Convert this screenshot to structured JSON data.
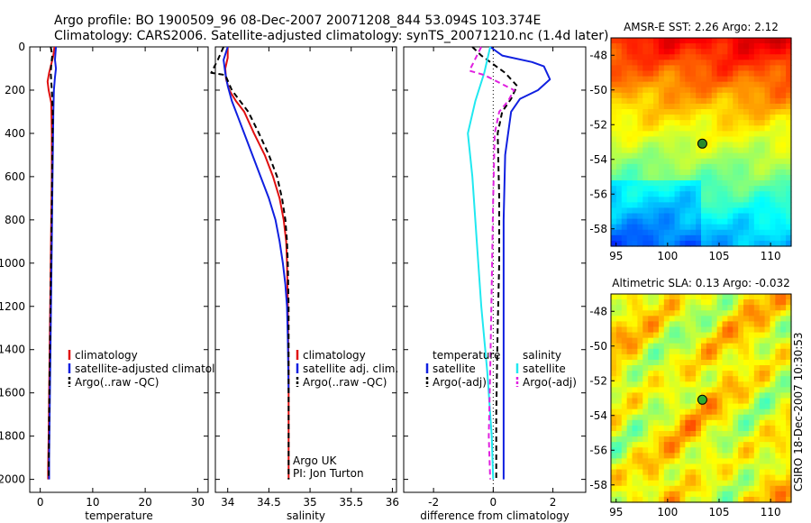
{
  "header": {
    "line1": "Argo profile: BO 1900509_96 08-Dec-2007 20071208_844 53.094S 103.374E",
    "line2": "Climatology: CARS2006. Satellite-adjusted climatology: synTS_20071210.nc (1.4d later)"
  },
  "side_stamp": "CSIRO 18-Dec-2007 10:30:53",
  "colors": {
    "climatology": "#e01010",
    "satellite": "#1020e0",
    "argo": "#000000",
    "satellite_salinity": "#20e8f0",
    "argo_salinity": "#e020e0",
    "marker_map1": "#2a8a2a",
    "marker_map2": "#30b030"
  },
  "chart_data": [
    {
      "type": "line",
      "panel": "temperature",
      "xlabel": "temperature",
      "ylabel": "",
      "xlim": [
        -2,
        32
      ],
      "ylim": [
        2060,
        0
      ],
      "xticks": [
        "0",
        "10",
        "20",
        "30"
      ],
      "yticks": [
        "0",
        "200",
        "400",
        "600",
        "800",
        "1000",
        "1200",
        "1400",
        "1600",
        "1800",
        "2000"
      ],
      "series": [
        {
          "name": "climatology",
          "color": "#e01010",
          "style": "solid",
          "x": [
            2.7,
            2.5,
            2.1,
            1.7,
            1.4,
            1.6,
            2.1,
            2.2,
            2.2,
            2.1,
            2.0,
            1.9,
            1.8,
            1.7,
            1.6,
            1.5,
            1.5
          ],
          "y": [
            0,
            40,
            80,
            120,
            160,
            200,
            260,
            400,
            600,
            800,
            1000,
            1200,
            1400,
            1600,
            1800,
            1950,
            2000
          ]
        },
        {
          "name": "satellite-adjusted climatology",
          "color": "#1020e0",
          "style": "solid",
          "x": [
            3.0,
            2.9,
            2.8,
            3.0,
            2.8,
            2.6,
            2.5,
            2.4,
            2.3,
            2.2,
            2.1,
            2.0,
            1.9,
            1.8,
            1.7,
            1.7
          ],
          "y": [
            0,
            30,
            60,
            100,
            140,
            200,
            300,
            500,
            700,
            900,
            1100,
            1300,
            1500,
            1700,
            1900,
            2000
          ]
        },
        {
          "name": "Argo(..raw -QC)",
          "color": "#000000",
          "style": "dashed",
          "x": [
            2.0,
            2.3,
            2.1,
            2.0,
            2.2,
            2.4,
            2.3,
            2.2,
            2.1,
            2.0,
            1.9,
            1.8,
            1.7,
            1.6
          ],
          "y": [
            0,
            40,
            80,
            120,
            200,
            300,
            500,
            700,
            900,
            1100,
            1300,
            1500,
            1700,
            2000
          ]
        }
      ],
      "legend": {
        "placement": "bottom-right",
        "entries": [
          "climatology",
          "satellite-adjusted climatology",
          "Argo(..raw -QC)"
        ]
      }
    },
    {
      "type": "line",
      "panel": "salinity",
      "xlabel": "salinity",
      "ylabel": "",
      "xlim": [
        33.85,
        36.05
      ],
      "ylim": [
        2060,
        0
      ],
      "xticks": [
        "34",
        "34.5",
        "35",
        "35.5",
        "36"
      ],
      "annotation": [
        "Argo UK",
        "PI: Jon Turton"
      ],
      "series": [
        {
          "name": "climatology",
          "color": "#e01010",
          "style": "solid",
          "x": [
            34.0,
            34.0,
            33.97,
            33.98,
            34.02,
            34.1,
            34.2,
            34.32,
            34.45,
            34.55,
            34.63,
            34.68,
            34.71,
            34.72,
            34.73,
            34.74,
            34.74,
            34.74
          ],
          "y": [
            0,
            50,
            100,
            150,
            200,
            250,
            300,
            400,
            500,
            600,
            700,
            800,
            900,
            1000,
            1200,
            1500,
            1800,
            2000
          ]
        },
        {
          "name": "satellite adj. clim.",
          "color": "#1020e0",
          "style": "solid",
          "x": [
            34.0,
            33.95,
            33.97,
            34.0,
            34.05,
            34.12,
            34.2,
            34.3,
            34.4,
            34.5,
            34.58,
            34.63,
            34.67,
            34.7,
            34.72,
            34.73,
            34.74
          ],
          "y": [
            0,
            60,
            120,
            180,
            250,
            320,
            400,
            500,
            600,
            700,
            800,
            900,
            1000,
            1100,
            1200,
            1350,
            1600
          ]
        },
        {
          "name": "Argo(..raw -QC)",
          "color": "#000000",
          "style": "dashed",
          "x": [
            33.95,
            33.88,
            33.8,
            33.97,
            34.05,
            34.15,
            34.25,
            34.38,
            34.5,
            34.6,
            34.66,
            34.7,
            34.72,
            34.73,
            34.74,
            34.74,
            34.74
          ],
          "y": [
            0,
            60,
            120,
            130,
            200,
            250,
            300,
            400,
            500,
            600,
            700,
            800,
            900,
            1000,
            1200,
            1500,
            2000
          ]
        }
      ],
      "legend": {
        "placement": "bottom-right",
        "entries": [
          "climatology",
          "satellite adj. clim.",
          "Argo(..raw -QC)"
        ]
      }
    },
    {
      "type": "line",
      "panel": "difference",
      "xlabel": "difference from climatology",
      "ylabel": "",
      "xlim": [
        -3,
        3.1
      ],
      "ylim": [
        2060,
        0
      ],
      "xticks": [
        "-2",
        "0",
        "2"
      ],
      "series": [
        {
          "name": "temperature satellite",
          "color": "#1020e0",
          "style": "solid",
          "x": [
            -0.1,
            0.3,
            1.3,
            1.7,
            1.9,
            1.5,
            0.9,
            0.6,
            0.4,
            0.35,
            0.35,
            0.35,
            0.35
          ],
          "y": [
            0,
            40,
            70,
            90,
            150,
            200,
            240,
            300,
            500,
            800,
            1200,
            1600,
            2000
          ]
        },
        {
          "name": "temperature Argo(-adj)",
          "color": "#000000",
          "style": "dashed",
          "x": [
            -0.7,
            -0.4,
            0.4,
            0.8,
            0.6,
            0.3,
            0.15,
            0.2,
            0.2,
            0.15,
            0.1,
            0.1
          ],
          "y": [
            0,
            40,
            120,
            180,
            240,
            300,
            400,
            700,
            1000,
            1300,
            1700,
            2000
          ]
        },
        {
          "name": "salinity satellite",
          "color": "#20e8f0",
          "style": "solid",
          "x": [
            -0.1,
            -0.3,
            -0.6,
            -0.85,
            -0.7,
            -0.55,
            -0.4,
            -0.2,
            -0.05,
            0.0
          ],
          "y": [
            0,
            120,
            250,
            400,
            600,
            900,
            1200,
            1500,
            1800,
            2000
          ]
        },
        {
          "name": "salinity Argo(-adj)",
          "color": "#e020e0",
          "style": "dashed",
          "x": [
            -0.4,
            -0.8,
            -0.3,
            0.7,
            0.5,
            0.2,
            0.05,
            0.0,
            -0.05,
            -0.1,
            -0.15,
            -0.1
          ],
          "y": [
            0,
            110,
            130,
            200,
            250,
            300,
            400,
            700,
            1100,
            1500,
            1800,
            2000
          ]
        }
      ],
      "legend": {
        "placement": "bottom",
        "columns": [
          {
            "title": "temperature",
            "entries": [
              "satellite",
              "Argo(-adj)"
            ]
          },
          {
            "title": "salinity",
            "entries": [
              "satellite",
              "Argo(-adj)"
            ]
          }
        ]
      },
      "zero_line": "dotted"
    },
    {
      "type": "heatmap",
      "panel": "sst_map",
      "title": "AMSR-E SST: 2.26 Argo: 2.12",
      "xlim": [
        94.5,
        112
      ],
      "ylim": [
        -59,
        -47
      ],
      "xticks": [
        "95",
        "100",
        "105",
        "110"
      ],
      "yticks": [
        "-48",
        "-50",
        "-52",
        "-54",
        "-56",
        "-58"
      ],
      "marker": {
        "lon": 103.374,
        "lat": -53.094
      },
      "color_scale": "jet"
    },
    {
      "type": "heatmap",
      "panel": "sla_map",
      "title": "Altimetric SLA: 0.13 Argo: -0.032",
      "xlim": [
        94.5,
        112
      ],
      "ylim": [
        -59,
        -47
      ],
      "xticks": [
        "95",
        "100",
        "105",
        "110"
      ],
      "yticks": [
        "-48",
        "-50",
        "-52",
        "-54",
        "-56",
        "-58"
      ],
      "marker": {
        "lon": 103.374,
        "lat": -53.094
      },
      "color_scale": "jet"
    }
  ]
}
